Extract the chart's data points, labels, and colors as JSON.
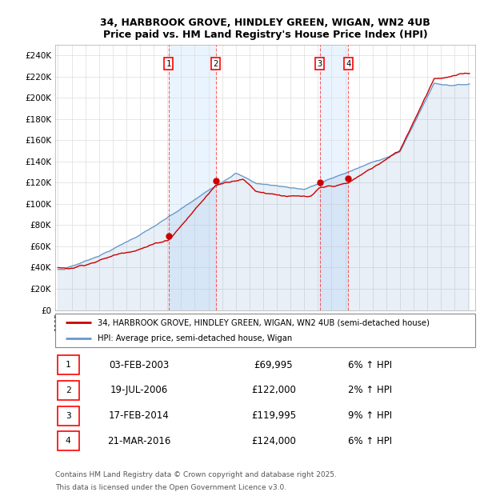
{
  "title_line1": "34, HARBROOK GROVE, HINDLEY GREEN, WIGAN, WN2 4UB",
  "title_line2": "Price paid vs. HM Land Registry's House Price Index (HPI)",
  "ylim": [
    0,
    250000
  ],
  "yticks": [
    0,
    20000,
    40000,
    60000,
    80000,
    100000,
    120000,
    140000,
    160000,
    180000,
    200000,
    220000,
    240000
  ],
  "sale_year_floats": [
    2003.09,
    2006.54,
    2014.13,
    2016.22
  ],
  "sale_prices": [
    69995,
    122000,
    119995,
    124000
  ],
  "sale_labels": [
    "1",
    "2",
    "3",
    "4"
  ],
  "sale_info": [
    {
      "label": "1",
      "date": "03-FEB-2003",
      "price": "£69,995",
      "hpi": "6% ↑ HPI"
    },
    {
      "label": "2",
      "date": "19-JUL-2006",
      "price": "£122,000",
      "hpi": "2% ↑ HPI"
    },
    {
      "label": "3",
      "date": "17-FEB-2014",
      "price": "£119,995",
      "hpi": "9% ↑ HPI"
    },
    {
      "label": "4",
      "date": "21-MAR-2016",
      "price": "£124,000",
      "hpi": "6% ↑ HPI"
    }
  ],
  "legend_line1": "34, HARBROOK GROVE, HINDLEY GREEN, WIGAN, WN2 4UB (semi-detached house)",
  "legend_line2": "HPI: Average price, semi-detached house, Wigan",
  "footer_line1": "Contains HM Land Registry data © Crown copyright and database right 2025.",
  "footer_line2": "This data is licensed under the Open Government Licence v3.0.",
  "hpi_color": "#6699cc",
  "hpi_fill_color": "#c8ddf0",
  "price_color": "#cc0000",
  "grid_color": "#dddddd",
  "shade_color": "#ddeeff"
}
